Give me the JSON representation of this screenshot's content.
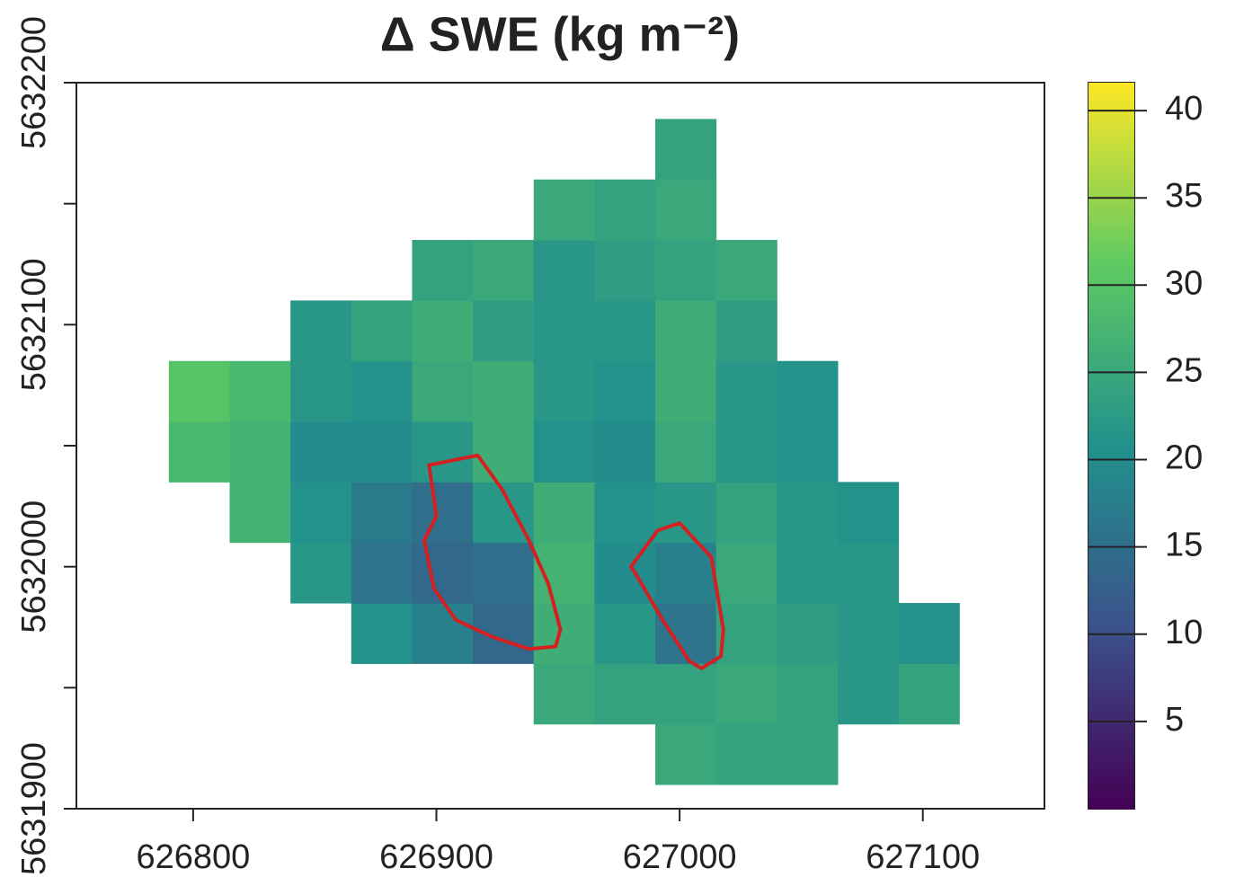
{
  "chart_data": {
    "type": "raster",
    "title": "Δ SWE (kg m⁻²)",
    "xlim": [
      626752,
      627150
    ],
    "ylim": [
      5631900,
      5632200
    ],
    "xticks": [
      626800,
      626900,
      627000,
      627100
    ],
    "yticks": [
      5631900,
      5632000,
      5632100,
      5632200
    ],
    "yminorticks": [
      5631950,
      5632050,
      5632150
    ],
    "raster": {
      "x": [
        626802.5,
        626827.5,
        626852.5,
        626877.5,
        626902.5,
        626927.5,
        626952.5,
        626977.5,
        627002.5,
        627027.5,
        627052.5,
        627077.5,
        627102.5
      ],
      "y": [
        5631922.5,
        5631947.5,
        5631972.5,
        5631997.5,
        5632022.5,
        5632047.5,
        5632072.5,
        5632097.5,
        5632122.5,
        5632147.5,
        5632172.5
      ],
      "values": [
        [
          null,
          null,
          null,
          null,
          null,
          null,
          null,
          null,
          25,
          24,
          24,
          null,
          null
        ],
        [
          null,
          null,
          null,
          null,
          null,
          null,
          25,
          24,
          24,
          25,
          24,
          22,
          24
        ],
        [
          null,
          null,
          null,
          21,
          18,
          14,
          26,
          22,
          16,
          24,
          23,
          22,
          21
        ],
        [
          null,
          null,
          22,
          16,
          14,
          15,
          27,
          20,
          18,
          25,
          22,
          22,
          null
        ],
        [
          null,
          27,
          21,
          17,
          15,
          22,
          26,
          21,
          22,
          24,
          22,
          21,
          null
        ],
        [
          28,
          27,
          20,
          20,
          22,
          26,
          21,
          20,
          25,
          22,
          21,
          null,
          null
        ],
        [
          30,
          28,
          22,
          21,
          25,
          26,
          22,
          21,
          26,
          22,
          21,
          null,
          null
        ],
        [
          null,
          null,
          22,
          24,
          26,
          23,
          22,
          22,
          26,
          23,
          null,
          null,
          null
        ],
        [
          null,
          null,
          null,
          null,
          24,
          25,
          22,
          23,
          24,
          25,
          null,
          null,
          null
        ],
        [
          null,
          null,
          null,
          null,
          null,
          null,
          25,
          24,
          25,
          null,
          null,
          null,
          null
        ],
        [
          null,
          null,
          null,
          null,
          null,
          null,
          null,
          null,
          24,
          null,
          null,
          null,
          null
        ]
      ]
    },
    "colorbar": {
      "lim": [
        0,
        41.6
      ],
      "ticks": [
        5,
        10,
        15,
        20,
        25,
        30,
        35,
        40
      ],
      "colormap": "viridis"
    },
    "outlines": [
      {
        "color": "#d42020",
        "x": [
          626897,
          626917,
          626927,
          626938,
          626946,
          626951,
          626949,
          626938,
          626923,
          626908,
          626899,
          626895,
          626900
        ],
        "y": [
          5632042,
          5632046,
          5632032,
          5632011,
          5631993,
          5631974,
          5631967,
          5631966,
          5631971,
          5631978,
          5631991,
          5632011,
          5632021
        ]
      },
      {
        "color": "#d42020",
        "x": [
          626980,
          626991,
          627000,
          627013,
          627018,
          627017,
          627009,
          627004,
          626993,
          626982
        ],
        "y": [
          5632000,
          5632015,
          5632018,
          5632004,
          5631974,
          5631963,
          5631958,
          5631961,
          5631978,
          5631997
        ]
      }
    ]
  }
}
